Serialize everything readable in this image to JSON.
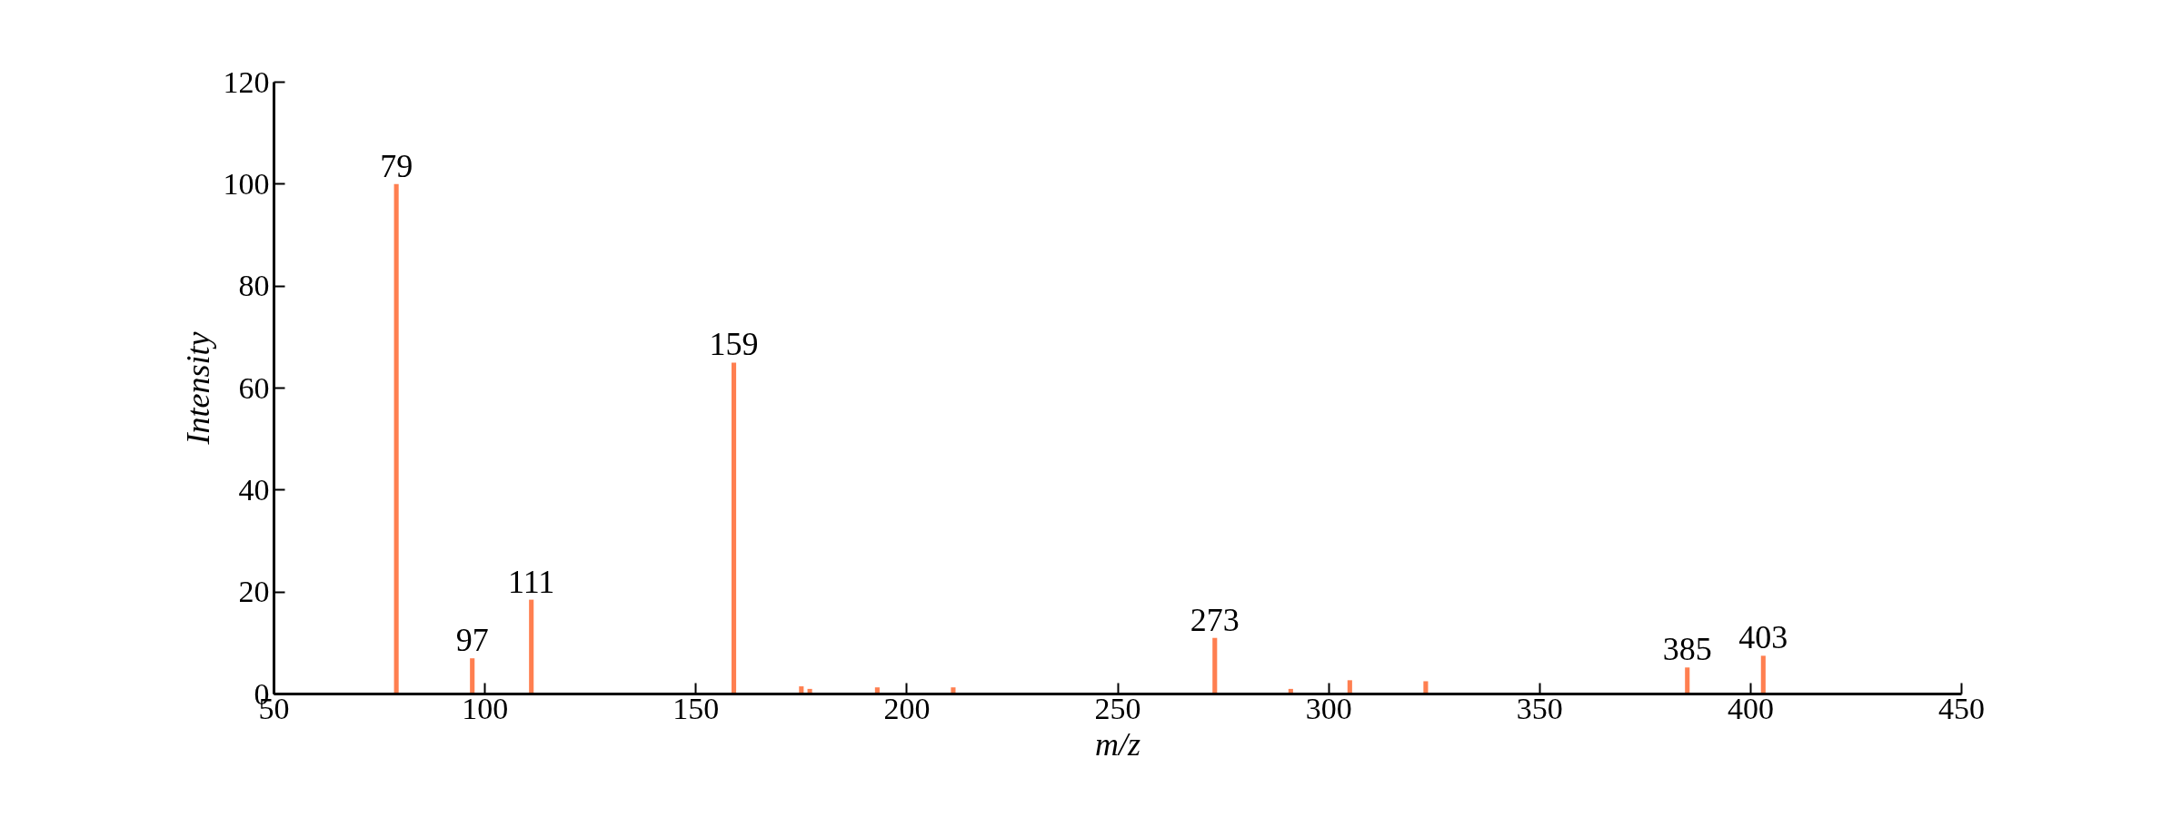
{
  "chart_data": {
    "type": "bar",
    "xlabel": "m/z",
    "ylabel": "Intensity",
    "x": [
      79,
      97,
      111,
      159,
      175,
      177,
      193,
      211,
      273,
      291,
      305,
      323,
      385,
      403
    ],
    "values": [
      100,
      7,
      18.5,
      65,
      1.5,
      1,
      1.3,
      1.3,
      11,
      1,
      2.7,
      2.5,
      5.2,
      7.5
    ],
    "color": "#ff7f50",
    "xlim": [
      50,
      450
    ],
    "xticks": [
      50,
      100,
      150,
      200,
      250,
      300,
      350,
      400,
      450
    ],
    "ylim": [
      0,
      120
    ],
    "yticks": [
      0,
      20,
      40,
      60,
      80,
      100,
      120
    ],
    "annotations": [
      {
        "text": "79",
        "x": 79,
        "y": 100
      },
      {
        "text": "97",
        "x": 97,
        "y": 7
      },
      {
        "text": "111",
        "x": 111,
        "y": 18.5
      },
      {
        "text": "159",
        "x": 159,
        "y": 65
      },
      {
        "text": "273",
        "x": 273,
        "y": 11
      },
      {
        "text": "385",
        "x": 385,
        "y": 5.2
      },
      {
        "text": "403",
        "x": 403,
        "y": 7.5
      }
    ]
  }
}
